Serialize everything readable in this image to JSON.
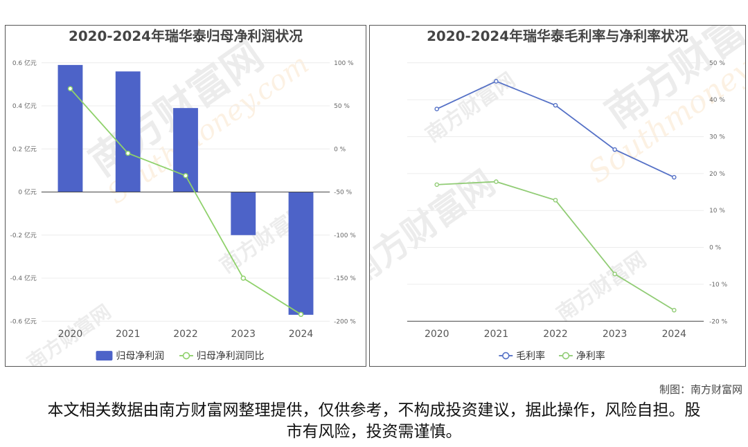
{
  "charts": {
    "left": {
      "title": "2020-2024年瑞华泰归母净利润状况",
      "left_axis_ticks": [
        "0.6 亿元",
        "0.4 亿元",
        "0.2 亿元",
        "0 亿元",
        "-0.2 亿元",
        "-0.4 亿元",
        "-0.6 亿元"
      ],
      "right_axis_ticks": [
        "100 %",
        "50 %",
        "0 %",
        "-50 %",
        "-100 %",
        "-150 %",
        "-200 %"
      ],
      "legend": [
        "归母净利润",
        "归母净利润同比"
      ]
    },
    "right": {
      "title": "2020-2024年瑞华泰毛利率与净利率状况",
      "right_axis_ticks": [
        "50 %",
        "40 %",
        "30 %",
        "20 %",
        "10 %",
        "0 %",
        "-10 %",
        "-20 %"
      ],
      "legend": [
        "毛利率",
        "净利率"
      ]
    }
  },
  "chart_data": [
    {
      "type": "bar",
      "title": "2020-2024年瑞华泰归母净利润状况",
      "categories": [
        "2020",
        "2021",
        "2022",
        "2023",
        "2024"
      ],
      "series": [
        {
          "name": "归母净利润",
          "type": "bar",
          "axis": "left",
          "unit": "亿元",
          "color": "#4d63c8",
          "values": [
            0.59,
            0.56,
            0.39,
            -0.2,
            -0.57
          ]
        },
        {
          "name": "归母净利润同比",
          "type": "line",
          "axis": "right",
          "unit": "%",
          "color": "#8fd16b",
          "values": [
            70,
            -5,
            -31,
            -150,
            -192
          ]
        }
      ],
      "ylim_left": [
        -0.6,
        0.6
      ],
      "ylim_right": [
        -200,
        100
      ],
      "grid": true,
      "legend_position": "bottom"
    },
    {
      "type": "line",
      "title": "2020-2024年瑞华泰毛利率与净利率状况",
      "categories": [
        "2020",
        "2021",
        "2022",
        "2023",
        "2024"
      ],
      "series": [
        {
          "name": "毛利率",
          "unit": "%",
          "color": "#5470c6",
          "values": [
            37.5,
            45,
            38.5,
            26.5,
            19
          ]
        },
        {
          "name": "净利率",
          "unit": "%",
          "color": "#91cc75",
          "values": [
            17,
            17.8,
            12.8,
            -7.2,
            -17
          ]
        }
      ],
      "ylim": [
        -20,
        50
      ],
      "grid": true,
      "legend_position": "bottom"
    }
  ],
  "watermark": {
    "cn": "南方财富网",
    "en": "Southmoney.com"
  },
  "credit": "制图：南方财富网",
  "disclaimer": "本文相关数据由南方财富网整理提供，仅供参考，不构成投资建议，据此操作，风险自担。股市有风险，投资需谨慎。"
}
